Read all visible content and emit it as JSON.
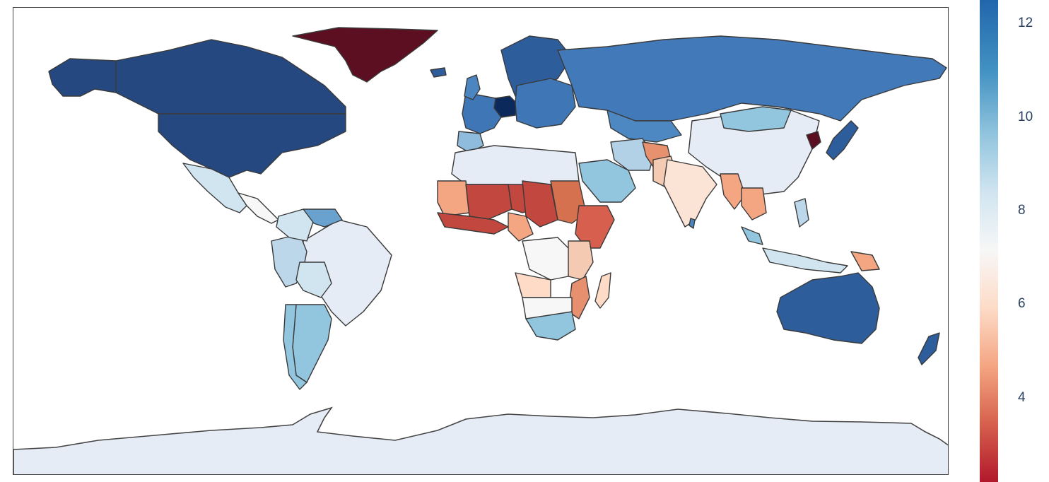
{
  "colorbar": {
    "min": 2.2,
    "max": 12.5,
    "ticks": [
      {
        "value": 12,
        "label": "12"
      },
      {
        "value": 10,
        "label": "10"
      },
      {
        "value": 8,
        "label": "8"
      },
      {
        "value": 6,
        "label": "6"
      },
      {
        "value": 4,
        "label": "4"
      }
    ],
    "colorscale": [
      "#b2182b",
      "#d6604d",
      "#f4a582",
      "#fddbc7",
      "#f7f7f7",
      "#d1e5f0",
      "#92c5de",
      "#4393c3",
      "#2166ac"
    ]
  },
  "map": {
    "projection": "equirectangular",
    "land_color": "#e5ecf6",
    "ocean_color": "#ffffff",
    "border_color": "#444444"
  },
  "colors": {
    "dark_red": "#5c0f20",
    "dark_navy": "#0b2a5b"
  }
}
